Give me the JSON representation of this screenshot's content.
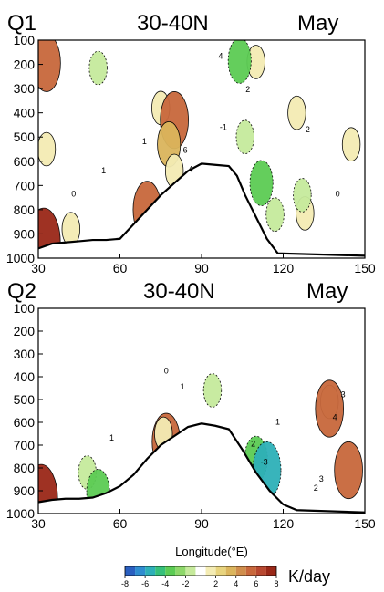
{
  "chart_data": [
    {
      "type": "contour",
      "id": "q1",
      "variable_label": "Q1",
      "region_label": "30-40N",
      "month_label": "May",
      "x_ticks": [
        30,
        60,
        90,
        120,
        150
      ],
      "y_ticks": [
        100,
        200,
        300,
        400,
        500,
        600,
        700,
        800,
        900,
        1000
      ],
      "xlim": [
        30,
        150
      ],
      "ylim": [
        1000,
        100
      ],
      "terrain_surface_hPa": [
        [
          30,
          960
        ],
        [
          35,
          940
        ],
        [
          40,
          935
        ],
        [
          45,
          930
        ],
        [
          50,
          925
        ],
        [
          55,
          925
        ],
        [
          60,
          920
        ],
        [
          65,
          860
        ],
        [
          70,
          800
        ],
        [
          75,
          740
        ],
        [
          80,
          690
        ],
        [
          85,
          640
        ],
        [
          90,
          610
        ],
        [
          95,
          615
        ],
        [
          100,
          620
        ],
        [
          103,
          660
        ],
        [
          106,
          740
        ],
        [
          110,
          830
        ],
        [
          114,
          920
        ],
        [
          118,
          980
        ],
        [
          150,
          990
        ]
      ],
      "shaded_regions": [
        {
          "lon": 33,
          "p": 195,
          "value": 6
        },
        {
          "lon": 33,
          "p": 550,
          "value": 2
        },
        {
          "lon": 42,
          "p": 880,
          "value": 2
        },
        {
          "lon": 32,
          "p": 935,
          "value": 8
        },
        {
          "lon": 75,
          "p": 380,
          "value": 2
        },
        {
          "lon": 80,
          "p": 430,
          "value": 6
        },
        {
          "lon": 78,
          "p": 530,
          "value": 4
        },
        {
          "lon": 80,
          "p": 640,
          "value": 2
        },
        {
          "lon": 70,
          "p": 800,
          "value": 6
        },
        {
          "lon": 110,
          "p": 190,
          "value": 2
        },
        {
          "lon": 125,
          "p": 400,
          "value": 2
        },
        {
          "lon": 145,
          "p": 530,
          "value": 2
        },
        {
          "lon": 128,
          "p": 815,
          "value": 2
        },
        {
          "lon": 52,
          "p": 215,
          "value": -2
        },
        {
          "lon": 104,
          "p": 185,
          "value": -4
        },
        {
          "lon": 106,
          "p": 500,
          "value": -2
        },
        {
          "lon": 112,
          "p": 690,
          "value": -4
        },
        {
          "lon": 117,
          "p": 820,
          "value": -2
        },
        {
          "lon": 127,
          "p": 740,
          "value": -2
        }
      ],
      "contour_labels": [
        {
          "lon": 43,
          "p": 745,
          "text": "0"
        },
        {
          "lon": 54,
          "p": 650,
          "text": "1"
        },
        {
          "lon": 69,
          "p": 530,
          "text": "1"
        },
        {
          "lon": 86,
          "p": 645,
          "text": "4"
        },
        {
          "lon": 84,
          "p": 565,
          "text": "6"
        },
        {
          "lon": 97,
          "p": 178,
          "text": "4"
        },
        {
          "lon": 107,
          "p": 315,
          "text": "2"
        },
        {
          "lon": 129,
          "p": 480,
          "text": "2"
        },
        {
          "lon": 98,
          "p": 470,
          "text": "-1"
        },
        {
          "lon": 140,
          "p": 745,
          "text": "0"
        }
      ]
    },
    {
      "type": "contour",
      "id": "q2",
      "variable_label": "Q2",
      "region_label": "30-40N",
      "month_label": "May",
      "x_ticks": [
        30,
        60,
        90,
        120,
        150
      ],
      "y_ticks": [
        100,
        200,
        300,
        400,
        500,
        600,
        700,
        800,
        900,
        1000
      ],
      "xlim": [
        30,
        150
      ],
      "ylim": [
        1000,
        100
      ],
      "xlabel": "Longitude(°E)",
      "terrain_surface_hPa": [
        [
          30,
          950
        ],
        [
          35,
          940
        ],
        [
          40,
          935
        ],
        [
          45,
          935
        ],
        [
          50,
          930
        ],
        [
          55,
          910
        ],
        [
          60,
          880
        ],
        [
          65,
          830
        ],
        [
          70,
          760
        ],
        [
          75,
          700
        ],
        [
          80,
          660
        ],
        [
          85,
          620
        ],
        [
          90,
          605
        ],
        [
          95,
          615
        ],
        [
          100,
          630
        ],
        [
          105,
          720
        ],
        [
          110,
          820
        ],
        [
          115,
          900
        ],
        [
          120,
          960
        ],
        [
          125,
          985
        ],
        [
          150,
          995
        ]
      ],
      "shaded_regions": [
        {
          "lon": 31,
          "p": 935,
          "value": 8
        },
        {
          "lon": 77,
          "p": 685,
          "value": 6
        },
        {
          "lon": 76,
          "p": 650,
          "value": 2
        },
        {
          "lon": 137,
          "p": 510,
          "value": 2
        },
        {
          "lon": 137,
          "p": 540,
          "value": 6
        },
        {
          "lon": 144,
          "p": 810,
          "value": 6
        },
        {
          "lon": 94,
          "p": 460,
          "value": -2
        },
        {
          "lon": 110,
          "p": 760,
          "value": -4
        },
        {
          "lon": 114,
          "p": 810,
          "value": -6
        },
        {
          "lon": 48,
          "p": 820,
          "value": -2
        },
        {
          "lon": 52,
          "p": 905,
          "value": -4
        }
      ],
      "contour_labels": [
        {
          "lon": 77,
          "p": 385,
          "text": "0"
        },
        {
          "lon": 83,
          "p": 455,
          "text": "1"
        },
        {
          "lon": 57,
          "p": 680,
          "text": "1"
        },
        {
          "lon": 118,
          "p": 610,
          "text": "1"
        },
        {
          "lon": 109,
          "p": 705,
          "text": "2"
        },
        {
          "lon": 113,
          "p": 785,
          "text": "-3"
        },
        {
          "lon": 139,
          "p": 590,
          "text": "4"
        },
        {
          "lon": 142,
          "p": 490,
          "text": "3"
        },
        {
          "lon": 134,
          "p": 860,
          "text": "3"
        },
        {
          "lon": 132,
          "p": 900,
          "text": "2"
        }
      ]
    }
  ],
  "colorbar": {
    "tick_labels": [
      "-8",
      "-6",
      "-4",
      "-2",
      "2",
      "4",
      "6",
      "8"
    ],
    "unit": "K/day",
    "bins": [
      {
        "value": -8,
        "color": "#2a5fc0"
      },
      {
        "value": -7,
        "color": "#2f8dd0"
      },
      {
        "value": -6,
        "color": "#2eb0b8"
      },
      {
        "value": -5,
        "color": "#36c07a"
      },
      {
        "value": -4,
        "color": "#5ccc54"
      },
      {
        "value": -3,
        "color": "#8ed86a"
      },
      {
        "value": -2,
        "color": "#c6ea9c"
      },
      {
        "value": 0,
        "color": "#ffffff"
      },
      {
        "value": 2,
        "color": "#f4ecb4"
      },
      {
        "value": 3,
        "color": "#e8d47e"
      },
      {
        "value": 4,
        "color": "#dbb55c"
      },
      {
        "value": 5,
        "color": "#d08e4c"
      },
      {
        "value": 6,
        "color": "#c8683c"
      },
      {
        "value": 7,
        "color": "#b84830"
      },
      {
        "value": 8,
        "color": "#9a2818"
      }
    ]
  }
}
